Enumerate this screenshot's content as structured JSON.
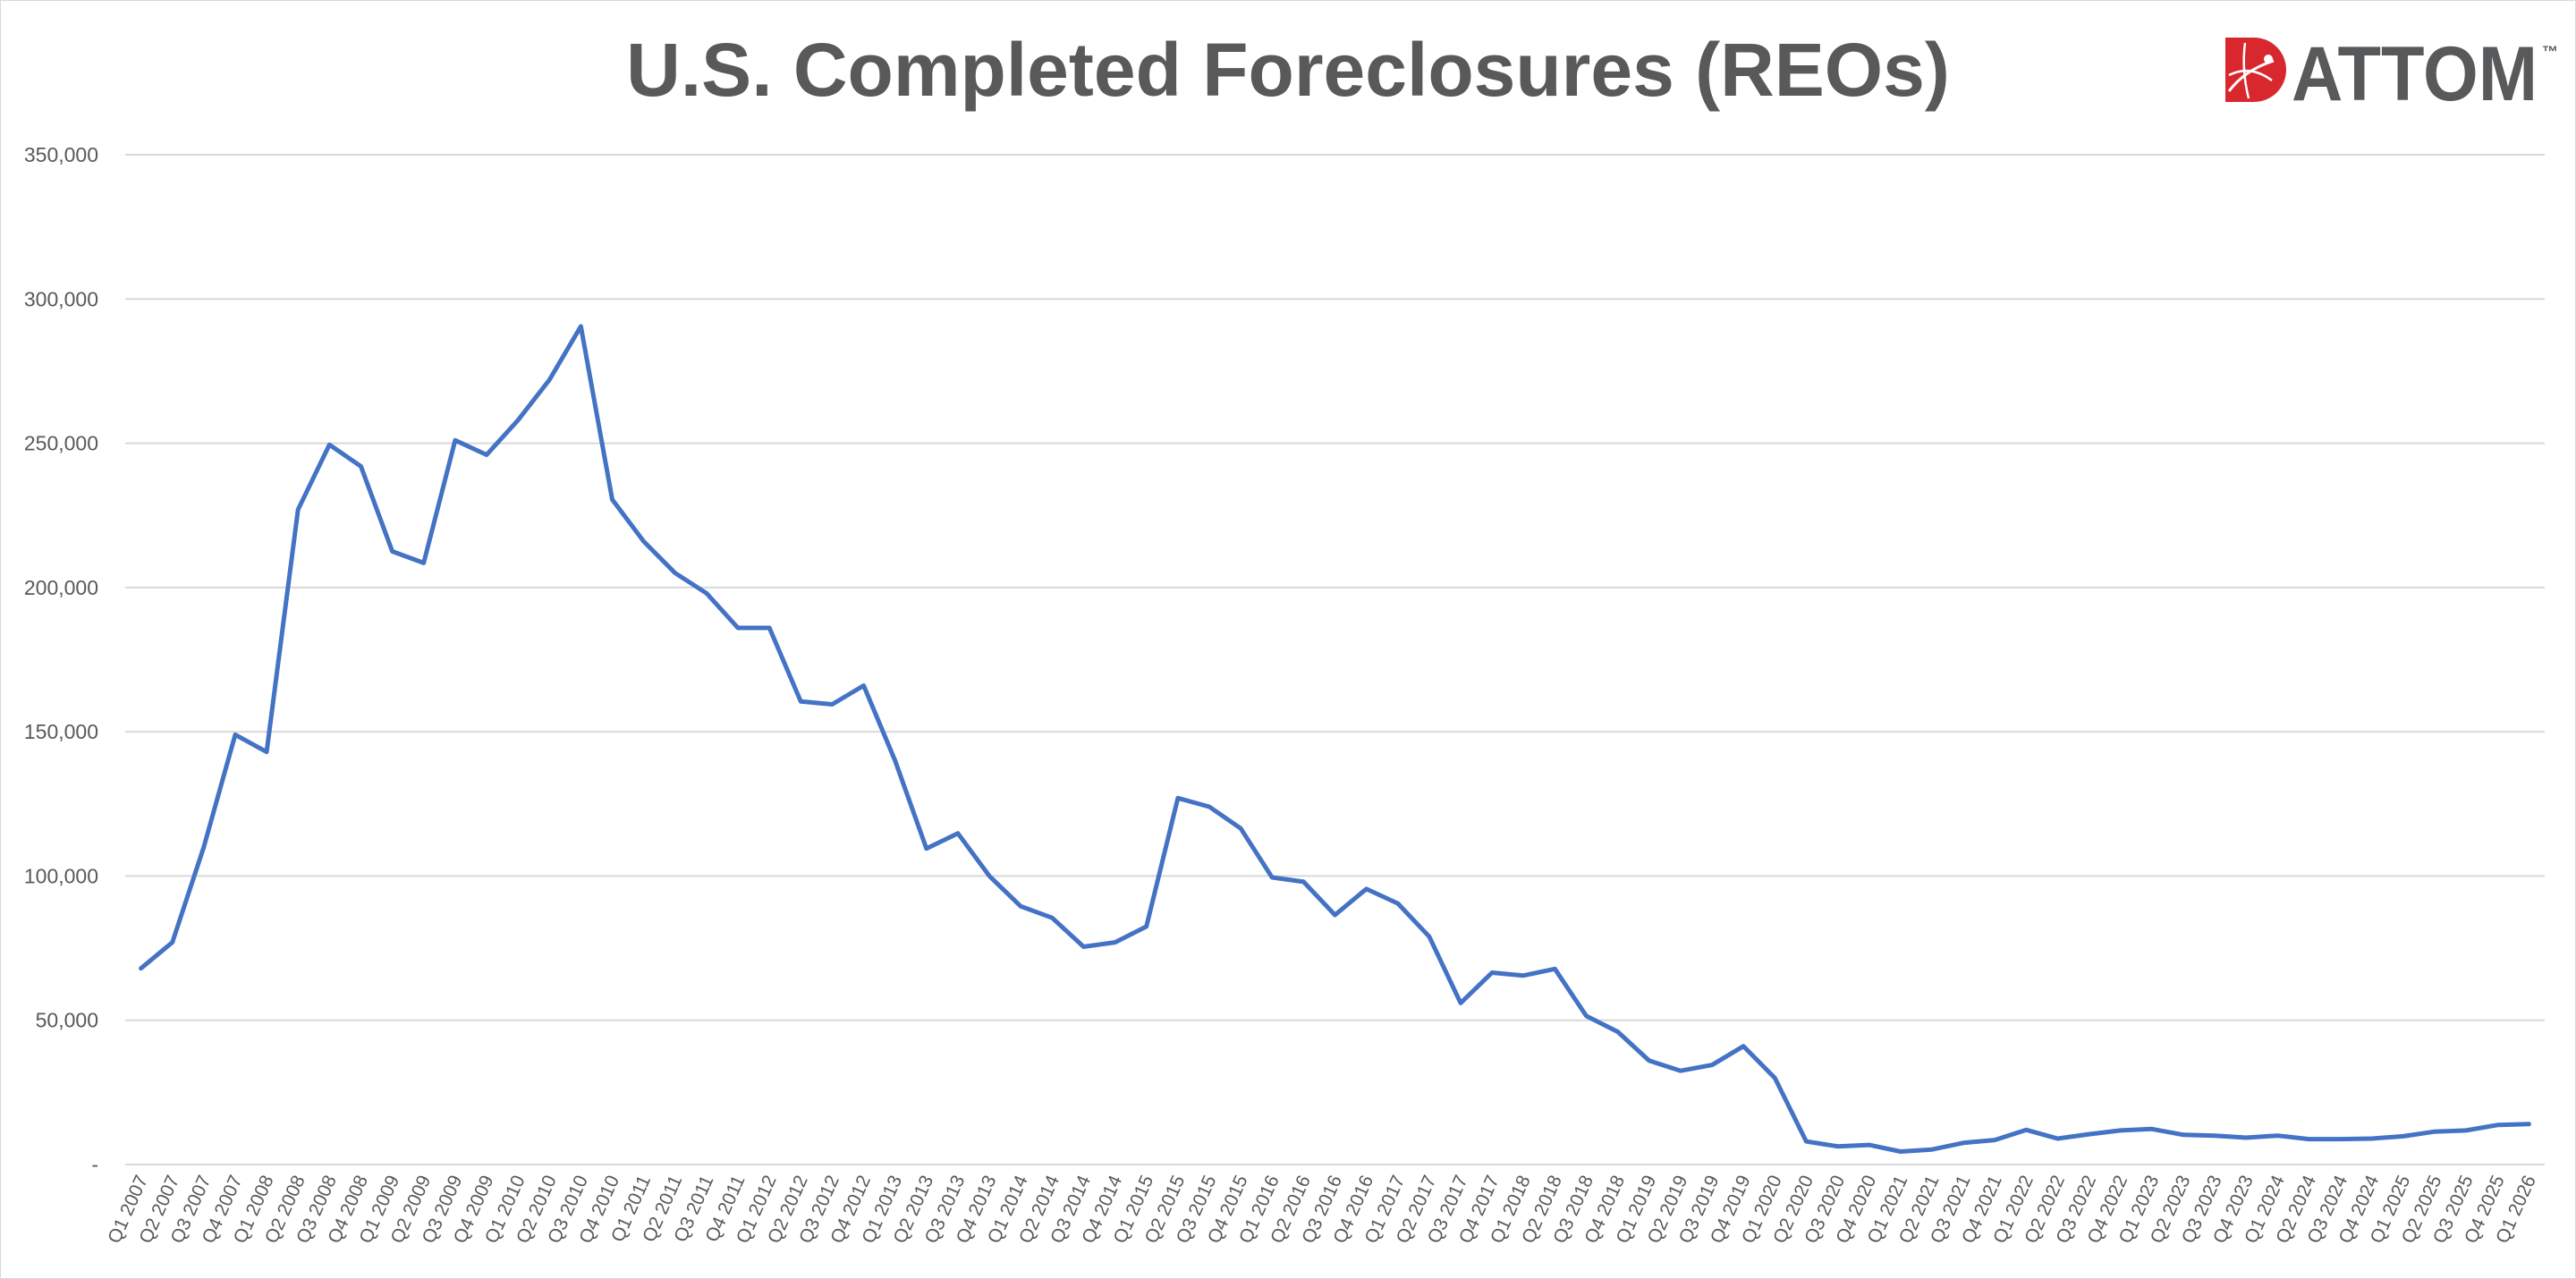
{
  "title": "U.S. Completed Foreclosures (REOs)",
  "logo": {
    "text": "ATTOM",
    "mark": "™",
    "icon": "attom-globe-icon",
    "colors": {
      "red": "#d9272e",
      "dark": "#58595b"
    }
  },
  "colors": {
    "line": "#4472c4",
    "grid": "#d9d9d9",
    "axis_text": "#595959",
    "title": "#595959"
  },
  "chart_data": {
    "type": "line",
    "title": "U.S. Completed Foreclosures (REOs)",
    "xlabel": "",
    "ylabel": "",
    "ylim": [
      0,
      350000
    ],
    "yticks": [
      0,
      50000,
      100000,
      150000,
      200000,
      250000,
      300000,
      350000
    ],
    "ytick_labels": [
      "-",
      "50,000",
      "100,000",
      "150,000",
      "200,000",
      "250,000",
      "300,000",
      "350,000"
    ],
    "grid": true,
    "legend": "none",
    "categories": [
      "Q1 2007",
      "Q2 2007",
      "Q3 2007",
      "Q4 2007",
      "Q1 2008",
      "Q2 2008",
      "Q3 2008",
      "Q4 2008",
      "Q1 2009",
      "Q2 2009",
      "Q3 2009",
      "Q4 2009",
      "Q1 2010",
      "Q2 2010",
      "Q3 2010",
      "Q4 2010",
      "Q1 2011",
      "Q2 2011",
      "Q3 2011",
      "Q4 2011",
      "Q1 2012",
      "Q2 2012",
      "Q3 2012",
      "Q4 2012",
      "Q1 2013",
      "Q2 2013",
      "Q3 2013",
      "Q4 2013",
      "Q1 2014",
      "Q2 2014",
      "Q3 2014",
      "Q4 2014",
      "Q1 2015",
      "Q2 2015",
      "Q3 2015",
      "Q4 2015",
      "Q1 2016",
      "Q2 2016",
      "Q3 2016",
      "Q4 2016",
      "Q1 2017",
      "Q2 2017",
      "Q3 2017",
      "Q4 2017",
      "Q1 2018",
      "Q2 2018",
      "Q3 2018",
      "Q4 2018",
      "Q1 2019",
      "Q2 2019",
      "Q3 2019",
      "Q4 2019",
      "Q1 2020",
      "Q2 2020",
      "Q3 2020",
      "Q4 2020",
      "Q1 2021",
      "Q2 2021",
      "Q3 2021",
      "Q4 2021",
      "Q1 2022",
      "Q2 2022",
      "Q3 2022",
      "Q4 2022",
      "Q1 2023",
      "Q2 2023",
      "Q3 2023",
      "Q4 2023",
      "Q1 2024",
      "Q2 2024",
      "Q3 2024",
      "Q4 2024",
      "Q1 2025",
      "Q2 2025",
      "Q3 2025",
      "Q4 2025",
      "Q1 2026"
    ],
    "series": [
      {
        "color": "#4472c4",
        "values": [
          68000,
          77000,
          110000,
          149000,
          143000,
          227000,
          249500,
          242000,
          212500,
          208500,
          251000,
          246000,
          258000,
          272000,
          290500,
          230500,
          216000,
          205000,
          198000,
          186000,
          186000,
          160500,
          159500,
          166000,
          140000,
          109500,
          114800,
          100000,
          89500,
          85500,
          75500,
          77000,
          82500,
          127000,
          124000,
          116500,
          99500,
          98000,
          86500,
          95500,
          90500,
          79000,
          56000,
          66500,
          65500,
          67800,
          51500,
          46000,
          36000,
          32500,
          34500,
          41000,
          30000,
          8000,
          6300,
          6800,
          4500,
          5200,
          7500,
          8500,
          12000,
          9000,
          10500,
          11800,
          12300,
          10300,
          10000,
          9300,
          10000,
          8800,
          8800,
          9000,
          9800,
          11400,
          11800,
          13700,
          14000
        ]
      }
    ]
  }
}
